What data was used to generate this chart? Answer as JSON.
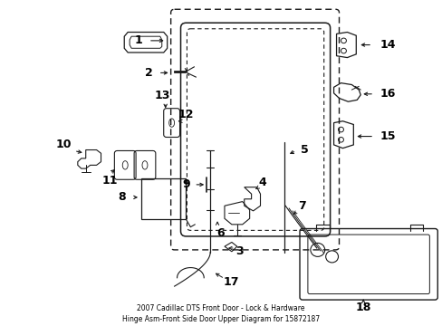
{
  "title": "2007 Cadillac DTS Front Door - Lock & Hardware\nHinge Asm-Front Side Door Upper Diagram for 15872187",
  "bg_color": "#ffffff",
  "line_color": "#1a1a1a",
  "text_color": "#000000",
  "fig_width": 4.89,
  "fig_height": 3.6,
  "dpi": 100
}
